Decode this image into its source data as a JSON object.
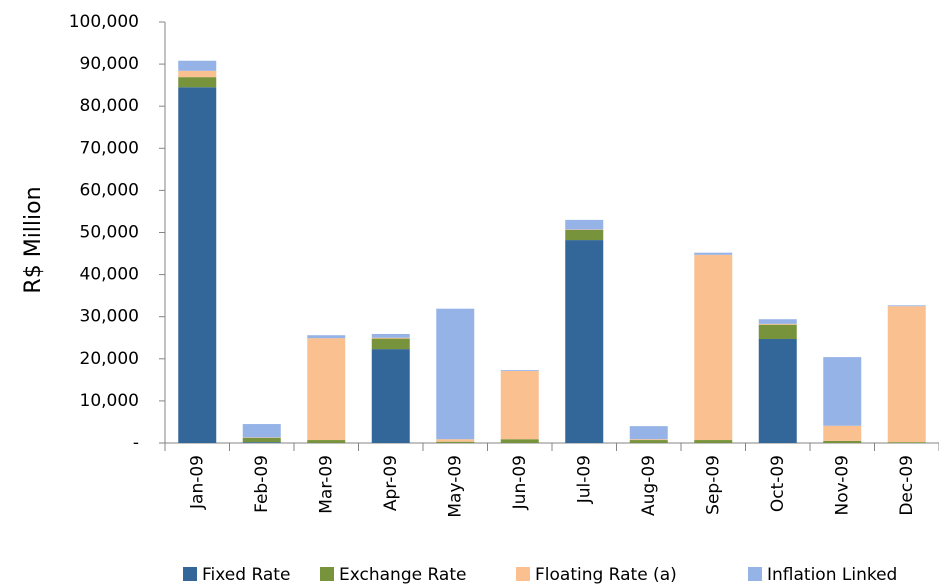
{
  "chart_data": {
    "type": "stacked_bar",
    "y_label": "R$ Million",
    "categories": [
      "Jan-09",
      "Feb-09",
      "Mar-09",
      "Apr-09",
      "May-09",
      "Jun-09",
      "Jul-09",
      "Aug-09",
      "Sep-09",
      "Oct-09",
      "Nov-09",
      "Dec-09"
    ],
    "series": [
      {
        "name": "Fixed Rate",
        "color": "#336699",
        "values": [
          84500,
          200,
          0,
          22300,
          0,
          0,
          48200,
          0,
          0,
          24700,
          0,
          0
        ]
      },
      {
        "name": "Exchange Rate",
        "color": "#77933c",
        "values": [
          2400,
          1000,
          700,
          2500,
          300,
          900,
          2400,
          700,
          700,
          3400,
          500,
          200
        ]
      },
      {
        "name": "Floating Rate (a)",
        "color": "#fac090",
        "values": [
          1500,
          100,
          24200,
          200,
          600,
          16200,
          100,
          200,
          44000,
          200,
          3600,
          32300
        ]
      },
      {
        "name": "Inflation Linked",
        "color": "#95b3e7",
        "values": [
          2400,
          3200,
          700,
          900,
          31000,
          200,
          2300,
          3100,
          500,
          1100,
          16300,
          200
        ]
      }
    ],
    "ylim": [
      0,
      100000
    ],
    "yticks": [
      {
        "value": 0,
        "label": "-"
      },
      {
        "value": 10000,
        "label": "10,000"
      },
      {
        "value": 20000,
        "label": "20,000"
      },
      {
        "value": 30000,
        "label": "30,000"
      },
      {
        "value": 40000,
        "label": "40,000"
      },
      {
        "value": 50000,
        "label": "50,000"
      },
      {
        "value": 60000,
        "label": "60,000"
      },
      {
        "value": 70000,
        "label": "70,000"
      },
      {
        "value": 80000,
        "label": "80,000"
      },
      {
        "value": 90000,
        "label": "90,000"
      },
      {
        "value": 100000,
        "label": "100,000"
      }
    ],
    "grid": false,
    "legend": "bottom"
  }
}
